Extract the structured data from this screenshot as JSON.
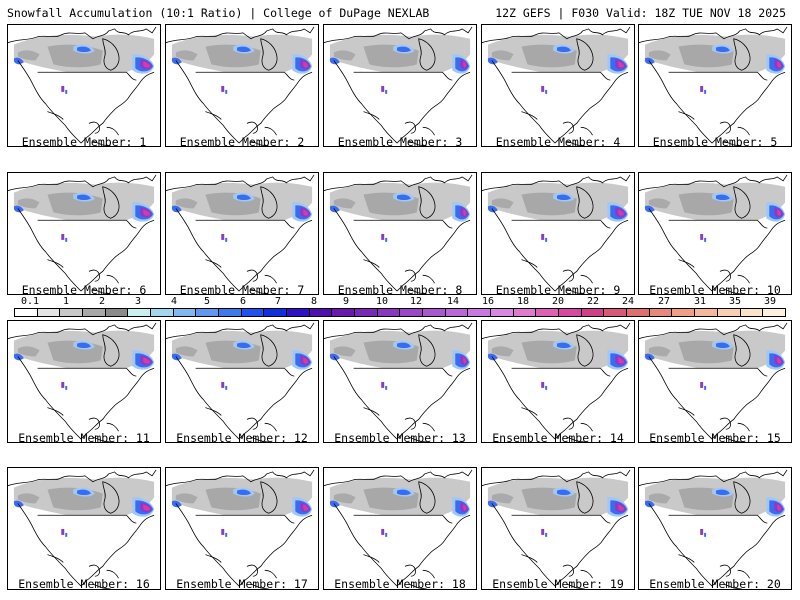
{
  "header": {
    "title_left": "Snowfall Accumulation (10:1 Ratio) | College of DuPage NEXLAB",
    "title_right": "12Z GEFS | F030 Valid: 18Z TUE NOV 18 2025"
  },
  "panels": [
    {
      "label": "Ensemble Member: 1"
    },
    {
      "label": "Ensemble Member: 2"
    },
    {
      "label": "Ensemble Member: 3"
    },
    {
      "label": "Ensemble Member: 4"
    },
    {
      "label": "Ensemble Member: 5"
    },
    {
      "label": "Ensemble Member: 6"
    },
    {
      "label": "Ensemble Member: 7"
    },
    {
      "label": "Ensemble Member: 8"
    },
    {
      "label": "Ensemble Member: 9"
    },
    {
      "label": "Ensemble Member: 10"
    },
    {
      "label": "Ensemble Member: 11"
    },
    {
      "label": "Ensemble Member: 12"
    },
    {
      "label": "Ensemble Member: 13"
    },
    {
      "label": "Ensemble Member: 14"
    },
    {
      "label": "Ensemble Member: 15"
    },
    {
      "label": "Ensemble Member: 16"
    },
    {
      "label": "Ensemble Member: 17"
    },
    {
      "label": "Ensemble Member: 18"
    },
    {
      "label": "Ensemble Member: 19"
    },
    {
      "label": "Ensemble Member: 20"
    }
  ],
  "colorbar": {
    "ticks": [
      "0.1",
      "1",
      "2",
      "3",
      "4",
      "5",
      "6",
      "7",
      "8",
      "9",
      "10",
      "12",
      "14",
      "16",
      "18",
      "20",
      "22",
      "24",
      "27",
      "31",
      "35",
      "39"
    ],
    "colors": [
      "#ffffff",
      "#e4e4e4",
      "#c8c8c8",
      "#a8a8a8",
      "#8a8a8a",
      "#c8f0f0",
      "#a0d8f0",
      "#80b8f0",
      "#6098f0",
      "#4078f0",
      "#2050f0",
      "#1030e0",
      "#3010c8",
      "#5010b0",
      "#6a18b0",
      "#7a28b8",
      "#8a38c0",
      "#9a48c8",
      "#aa58d0",
      "#ba68d8",
      "#c878e0",
      "#d888e0",
      "#e07ad0",
      "#e060b8",
      "#d848a0",
      "#d04088",
      "#d85878",
      "#e07070",
      "#e88878",
      "#f0a080",
      "#f4b898",
      "#f8d0b0",
      "#fce4c8",
      "#fff0dc"
    ]
  },
  "colors": {
    "land_gray": "#c9c9c9",
    "land_dark": "#8c8c8c",
    "snow_blue": "#3a6cf0",
    "snow_light": "#9fc8f4",
    "snow_purple": "#8a3ac8",
    "snow_magenta": "#d43aa8",
    "outline": "#000000"
  }
}
